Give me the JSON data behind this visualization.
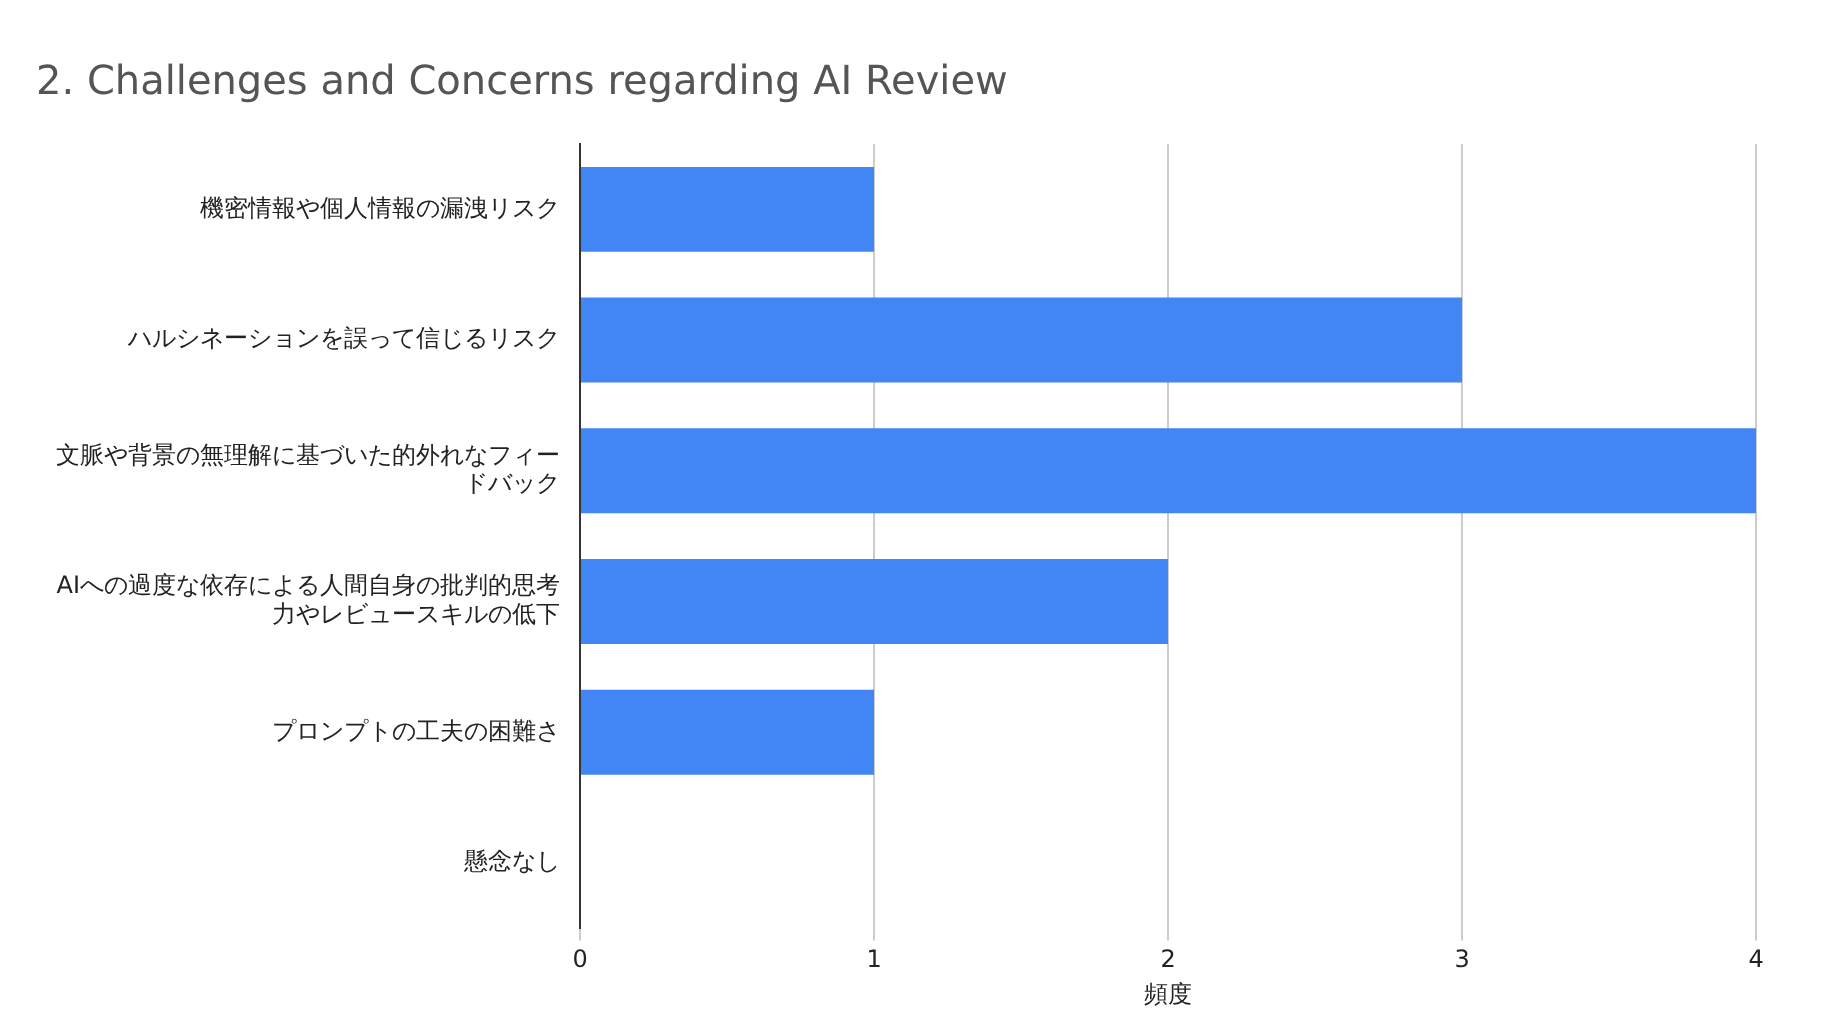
{
  "chart_data": {
    "type": "bar",
    "orientation": "horizontal",
    "title": "2. Challenges and Concerns regarding AI Review",
    "xlabel": "頻度",
    "categories": [
      "機密情報や個人情報の漏洩リスク",
      "ハルシネーションを誤って信じるリスク",
      "文脈や背景の無理解に基づいた的外れなフィードバック",
      "AIへの過度な依存による人間自身の批判的思考力やレビュースキルの低下",
      "プロンプトの工夫の困難さ",
      "懸念なし"
    ],
    "values": [
      1,
      3,
      4,
      2,
      1,
      0
    ],
    "color": "#4285f4",
    "xlim": [
      0,
      4
    ],
    "xticks": [
      0,
      1,
      2,
      3,
      4
    ],
    "grid": "x",
    "legend": false
  }
}
